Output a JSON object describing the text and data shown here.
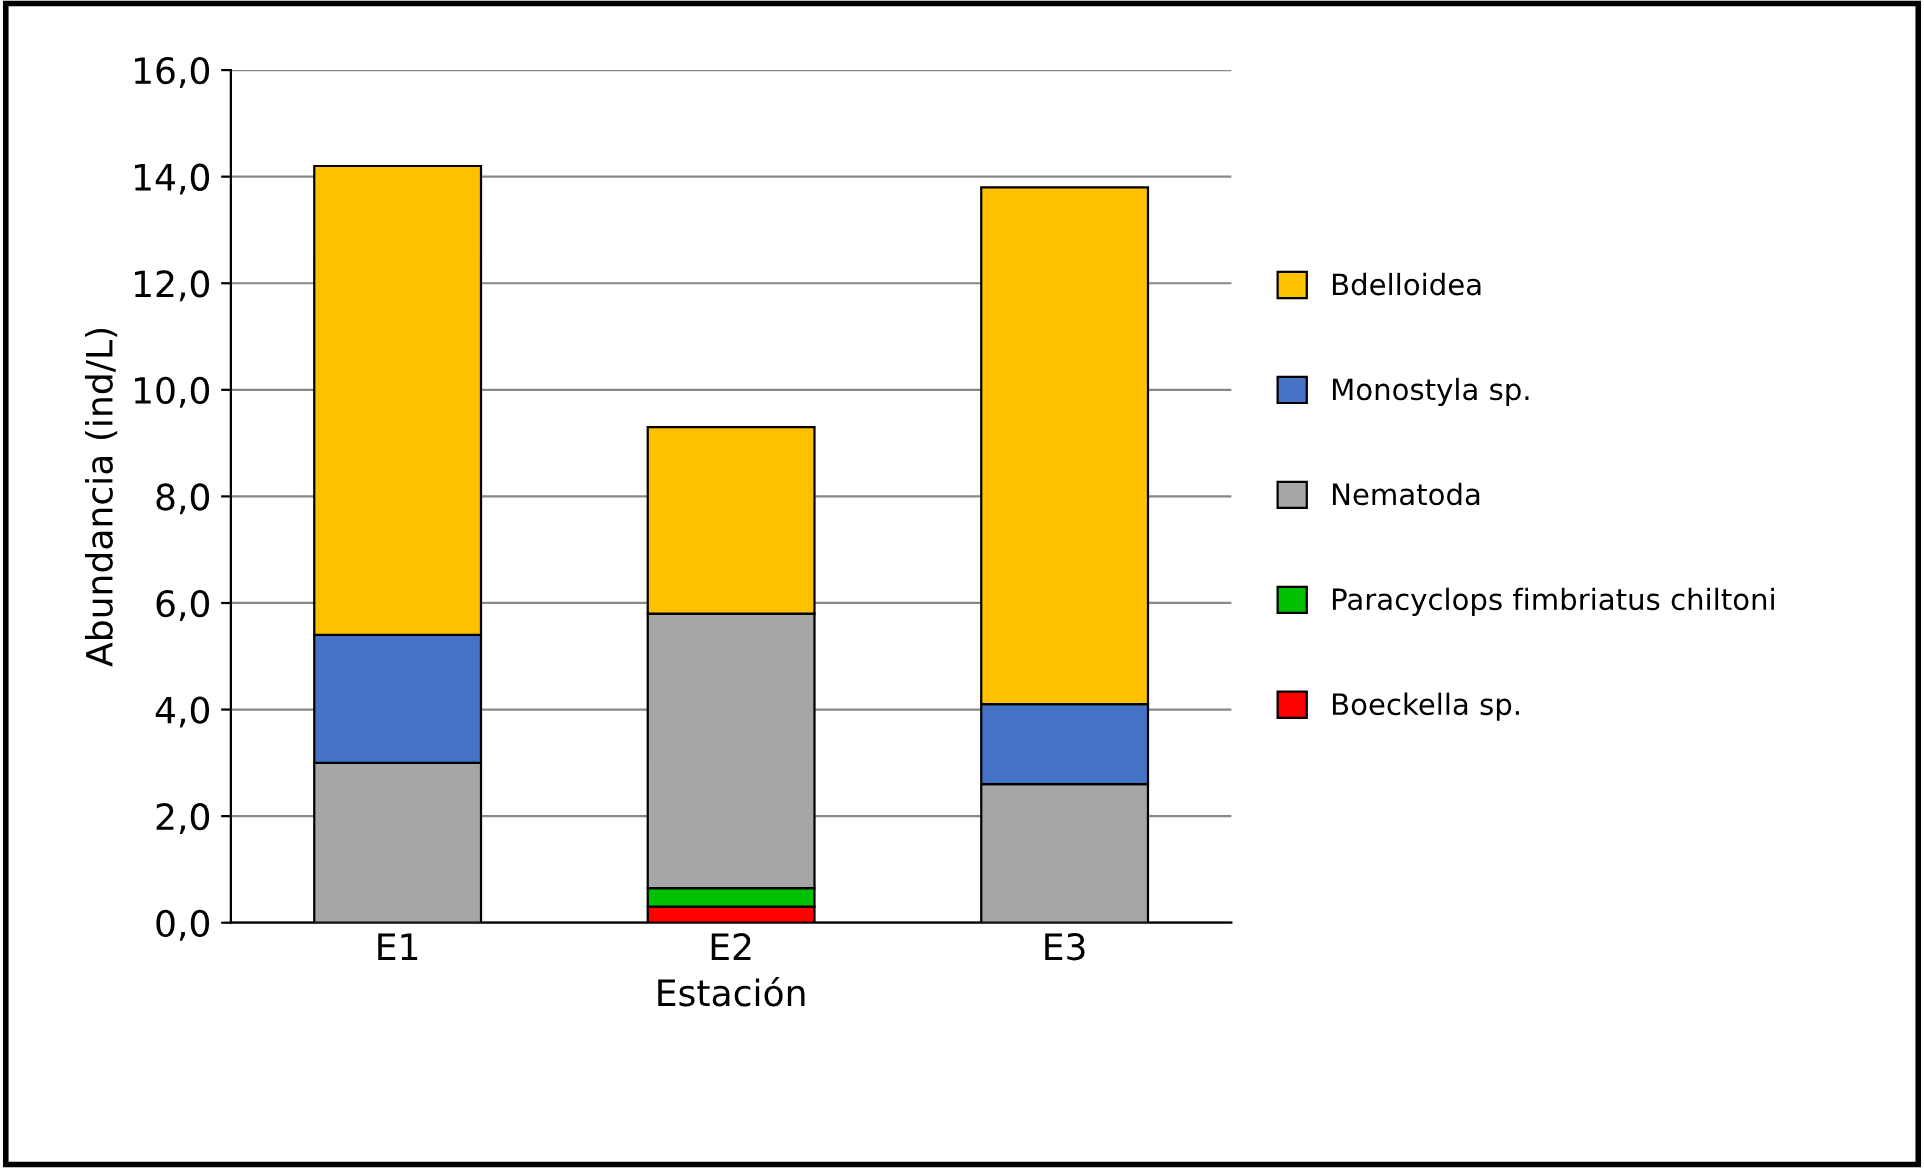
{
  "chart_data": {
    "type": "bar",
    "stacked": true,
    "xlabel": "Estación",
    "ylabel": "Abundancia (ind/L)",
    "categories": [
      "E1",
      "E2",
      "E3"
    ],
    "series": [
      {
        "name": "Boeckella sp.",
        "color": "#ff0000",
        "values": [
          0,
          0.3,
          0
        ]
      },
      {
        "name": "Paracyclops fimbriatus chiltoni",
        "color": "#00c000",
        "values": [
          0,
          0.35,
          0
        ]
      },
      {
        "name": "Nematoda",
        "color": "#a6a6a6",
        "values": [
          3.0,
          5.15,
          2.6
        ]
      },
      {
        "name": "Monostyla sp.",
        "color": "#4472c4",
        "values": [
          2.4,
          0,
          1.5
        ]
      },
      {
        "name": "Bdelloidea",
        "color": "#ffc000",
        "values": [
          8.8,
          3.5,
          9.7
        ]
      }
    ],
    "ylim": [
      0,
      16
    ],
    "yticks": [
      {
        "value": 0,
        "label": "0,0"
      },
      {
        "value": 2,
        "label": "2,0"
      },
      {
        "value": 4,
        "label": "4,0"
      },
      {
        "value": 6,
        "label": "6,0"
      },
      {
        "value": 8,
        "label": "8,0"
      },
      {
        "value": 10,
        "label": "10,0"
      },
      {
        "value": 12,
        "label": "12,0"
      },
      {
        "value": 14,
        "label": "14,0"
      },
      {
        "value": 16,
        "label": "16,0"
      }
    ],
    "grid": "y",
    "legend": "right"
  }
}
